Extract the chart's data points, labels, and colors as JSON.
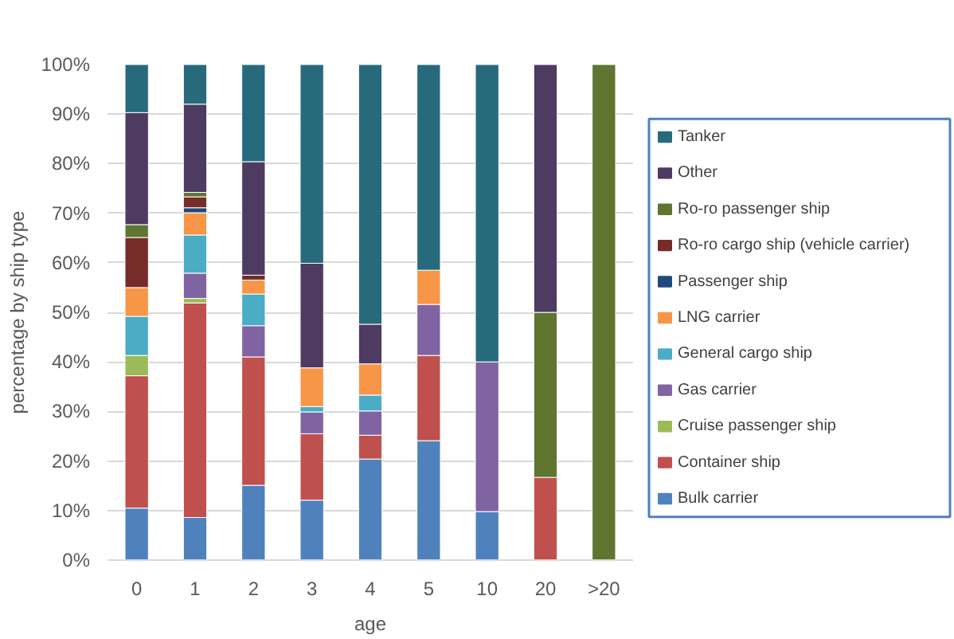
{
  "chart_data": {
    "type": "bar",
    "stacked": true,
    "xlabel": "age",
    "ylabel": "percentage by ship type",
    "categories": [
      "0",
      "1",
      "2",
      "3",
      "4",
      "5",
      "10",
      "20",
      ">20"
    ],
    "ylim": [
      0,
      100
    ],
    "yticks": [
      {
        "value": 0,
        "label": "0%"
      },
      {
        "value": 10,
        "label": "10%"
      },
      {
        "value": 20,
        "label": "20%"
      },
      {
        "value": 30,
        "label": "30%"
      },
      {
        "value": 40,
        "label": "40%"
      },
      {
        "value": 50,
        "label": "50%"
      },
      {
        "value": 60,
        "label": "60%"
      },
      {
        "value": 70,
        "label": "70%"
      },
      {
        "value": 80,
        "label": "80%"
      },
      {
        "value": 90,
        "label": "90%"
      },
      {
        "value": 100,
        "label": "100%"
      }
    ],
    "grid": "y",
    "legend": "right",
    "series": [
      {
        "name": "Bulk carrier",
        "color": "#4f81bd",
        "values": [
          10.5,
          8.6,
          15.1,
          12.1,
          20.4,
          24.1,
          9.8,
          null,
          null
        ]
      },
      {
        "name": "Container ship",
        "color": "#c0504d",
        "values": [
          26.7,
          43.3,
          25.9,
          13.4,
          4.8,
          17.2,
          null,
          16.7,
          null
        ]
      },
      {
        "name": "Cruise passenger ship",
        "color": "#9bbb59",
        "values": [
          4.1,
          0.9,
          null,
          null,
          null,
          null,
          null,
          null,
          null
        ]
      },
      {
        "name": "Gas carrier",
        "color": "#8064a2",
        "values": [
          null,
          5.1,
          6.3,
          4.4,
          4.9,
          10.3,
          30.2,
          null,
          null
        ]
      },
      {
        "name": "General cargo ship",
        "color": "#4bacc6",
        "values": [
          7.9,
          7.7,
          6.4,
          1.1,
          3.2,
          null,
          null,
          null,
          null
        ]
      },
      {
        "name": "LNG carrier",
        "color": "#f79646",
        "values": [
          5.8,
          4.5,
          2.8,
          7.8,
          6.3,
          6.9,
          null,
          null,
          null
        ]
      },
      {
        "name": "Passenger ship",
        "color": "#1f497d",
        "values": [
          null,
          1.0,
          null,
          null,
          null,
          null,
          null,
          null,
          null
        ]
      },
      {
        "name": "Ro-ro cargo ship (vehicle carrier)",
        "color": "#772c2a",
        "values": [
          10.1,
          2.2,
          1.0,
          null,
          null,
          null,
          null,
          null,
          null
        ]
      },
      {
        "name": "Ro-ro passenger ship",
        "color": "#5f7530",
        "values": [
          2.6,
          0.9,
          null,
          null,
          null,
          null,
          null,
          33.3,
          100
        ]
      },
      {
        "name": "Other",
        "color": "#4d3b62",
        "values": [
          22.6,
          17.8,
          22.9,
          21.1,
          8.0,
          null,
          null,
          50.0,
          null
        ]
      },
      {
        "name": "Tanker",
        "color": "#276a7c",
        "values": [
          9.7,
          8.0,
          19.6,
          40.1,
          52.4,
          41.5,
          60.0,
          null,
          null
        ]
      }
    ]
  }
}
